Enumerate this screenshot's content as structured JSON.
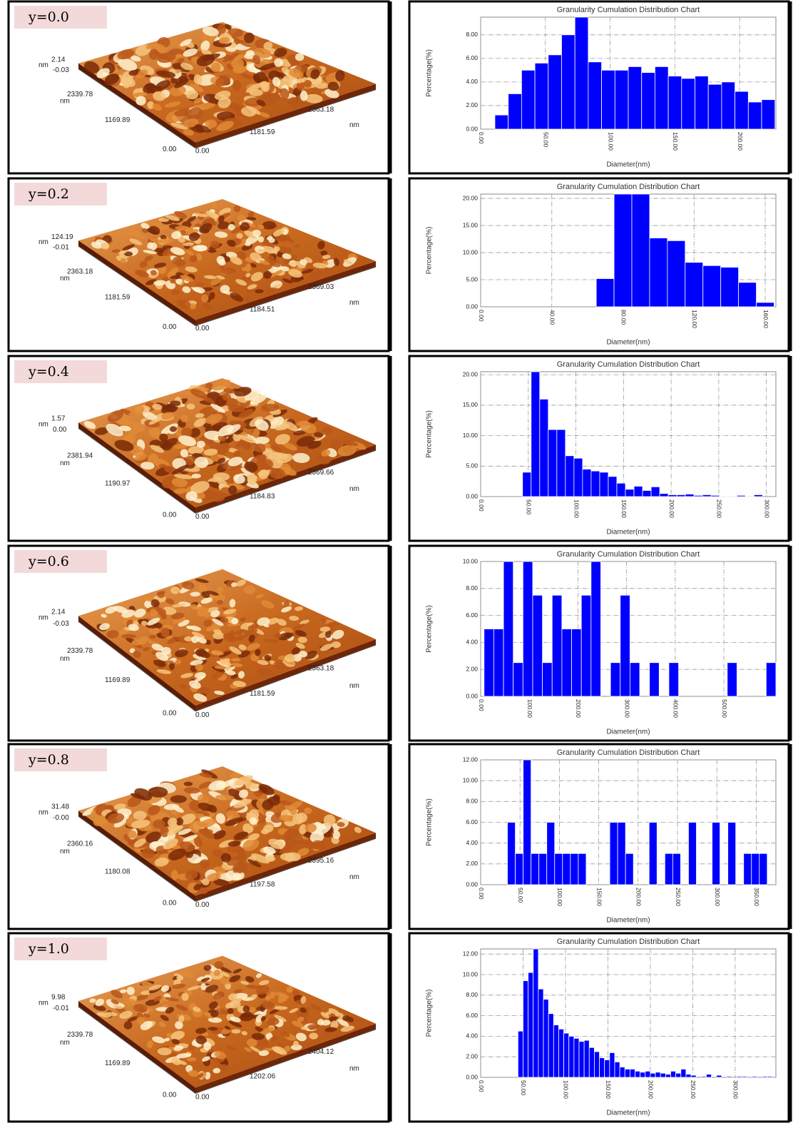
{
  "afm_panels": [
    {
      "label": "y=0.0",
      "unit": "nm",
      "z_max": "2.14",
      "z_min": "-0.03",
      "y_max": "2339.78",
      "y_mid": "1169.89",
      "origin_y": "0.00",
      "origin_x": "0.00",
      "x_mid": "1181.59",
      "x_max": "2363.18"
    },
    {
      "label": "y=0.2",
      "unit": "nm",
      "z_max": "124.19",
      "z_min": "-0.01",
      "y_max": "2363.18",
      "y_mid": "1181.59",
      "origin_y": "0.00",
      "origin_x": "0.00",
      "x_mid": "1184.51",
      "x_max": "2369.03"
    },
    {
      "label": "y=0.4",
      "unit": "nm",
      "z_max": "1.57",
      "z_min": "0.00",
      "y_max": "2381.94",
      "y_mid": "1190.97",
      "origin_y": "0.00",
      "origin_x": "0.00",
      "x_mid": "1184.83",
      "x_max": "2369.66"
    },
    {
      "label": "y=0.6",
      "unit": "nm",
      "z_max": "2.14",
      "z_min": "-0.03",
      "y_max": "2339.78",
      "y_mid": "1169.89",
      "origin_y": "0.00",
      "origin_x": "0.00",
      "x_mid": "1181.59",
      "x_max": "2363.18"
    },
    {
      "label": "y=0.8",
      "unit": "nm",
      "z_max": "31.48",
      "z_min": "-0.00",
      "y_max": "2360.16",
      "y_mid": "1180.08",
      "origin_y": "0.00",
      "origin_x": "0.00",
      "x_mid": "1197.58",
      "x_max": "2395.16"
    },
    {
      "label": "y=1.0",
      "unit": "nm",
      "z_max": "9.98",
      "z_min": "-0.01",
      "y_max": "2339.78",
      "y_mid": "1169.89",
      "origin_y": "0.00",
      "origin_x": "0.00",
      "x_mid": "1202.06",
      "x_max": "2404.12"
    }
  ],
  "chart_data": [
    {
      "type": "histogram",
      "title": "Granularity Cumulation Distribution  Chart",
      "x_label": "Diameter(nm)",
      "y_label": "Percentage(%)",
      "color": "#0000ff",
      "grid": true,
      "bins": [
        11,
        21.3,
        31.6,
        41.9,
        52.2,
        62.5,
        72.8,
        83.1,
        93.4,
        103.7,
        114,
        124.3,
        134.6,
        144.9,
        155.2,
        165.5,
        175.8,
        186.1,
        196.4,
        206.7,
        217,
        227.3
      ],
      "values": [
        1.2,
        3.0,
        5.0,
        5.6,
        6.3,
        8.0,
        9.5,
        5.7,
        5.0,
        5.0,
        5.3,
        4.8,
        5.3,
        4.5,
        4.3,
        4.5,
        3.8,
        4.0,
        3.2,
        2.3,
        2.5
      ],
      "xlim": [
        0,
        228
      ],
      "ylim": [
        0,
        9.5
      ],
      "xticks": [
        {
          "value": 0,
          "label": "0.00"
        },
        {
          "value": 50,
          "label": "50.00"
        },
        {
          "value": 100,
          "label": "100.00"
        },
        {
          "value": 150,
          "label": "150.00"
        },
        {
          "value": 200,
          "label": "200.00"
        }
      ],
      "yticks": [
        {
          "value": 0,
          "label": "0.00"
        },
        {
          "value": 2,
          "label": "2.00"
        },
        {
          "value": 4,
          "label": "4.00"
        },
        {
          "value": 6,
          "label": "6.00"
        },
        {
          "value": 8,
          "label": "8.00"
        }
      ]
    },
    {
      "type": "histogram",
      "title": "Granularity Cumulation Distribution  Chart",
      "x_label": "Diameter(nm)",
      "y_label": "Percentage(%)",
      "color": "#0000ff",
      "grid": true,
      "bins": [
        65,
        75,
        85,
        95,
        105,
        115,
        125,
        135,
        145,
        155,
        165
      ],
      "values": [
        5.2,
        20.8,
        20.8,
        12.7,
        12.2,
        8.2,
        7.6,
        7.3,
        4.5,
        0.8
      ],
      "xlim": [
        0,
        166
      ],
      "ylim": [
        0,
        20.8
      ],
      "xticks": [
        {
          "value": 0,
          "label": "0.00"
        },
        {
          "value": 40,
          "label": "40.00"
        },
        {
          "value": 80,
          "label": "80.00"
        },
        {
          "value": 120,
          "label": "120.00"
        },
        {
          "value": 160,
          "label": "160.00"
        }
      ],
      "yticks": [
        {
          "value": 0,
          "label": "0.00"
        },
        {
          "value": 5,
          "label": "5.00"
        },
        {
          "value": 10,
          "label": "10.00"
        },
        {
          "value": 15,
          "label": "15.00"
        },
        {
          "value": 20,
          "label": "20.00"
        }
      ]
    },
    {
      "type": "histogram",
      "title": "Granularity Cumulation Distribution  Chart",
      "x_label": "Diameter(nm)",
      "y_label": "Percentage(%)",
      "color": "#0000ff",
      "grid": true,
      "bins": [
        44,
        53,
        62,
        71,
        80,
        89,
        98,
        107,
        116,
        125,
        134,
        143,
        152,
        161,
        170,
        179,
        188,
        197,
        206,
        215,
        224,
        233,
        242,
        251,
        260,
        269,
        278,
        287,
        296
      ],
      "values": [
        4.0,
        20.5,
        16.0,
        11.0,
        11.0,
        6.7,
        6.3,
        4.5,
        4.2,
        4.0,
        3.3,
        2.2,
        1.2,
        1.7,
        1.0,
        1.6,
        0.5,
        0.3,
        0.3,
        0.4,
        0.2,
        0.3,
        0.2,
        0.1,
        0.1,
        0.2,
        0.1,
        0.3
      ],
      "xlim": [
        0,
        310
      ],
      "ylim": [
        0,
        20.5
      ],
      "xticks": [
        {
          "value": 0,
          "label": "0.00"
        },
        {
          "value": 50,
          "label": "50.00"
        },
        {
          "value": 100,
          "label": "100.00"
        },
        {
          "value": 150,
          "label": "150.00"
        },
        {
          "value": 200,
          "label": "200.00"
        },
        {
          "value": 250,
          "label": "250.00"
        },
        {
          "value": 300,
          "label": "300.00"
        }
      ],
      "yticks": [
        {
          "value": 0,
          "label": "0.00"
        },
        {
          "value": 5,
          "label": "5.00"
        },
        {
          "value": 10,
          "label": "10.00"
        },
        {
          "value": 15,
          "label": "15.00"
        },
        {
          "value": 20,
          "label": "20.00"
        }
      ]
    },
    {
      "type": "histogram",
      "title": "Granularity Cumulation Distribution  Chart",
      "x_label": "Diameter(nm)",
      "y_label": "Percentage(%)",
      "color": "#0000ff",
      "grid": true,
      "bins": [
        7,
        27,
        47,
        67,
        87,
        107,
        127,
        147,
        167,
        187,
        207,
        227,
        247,
        267,
        287,
        307,
        327,
        347,
        367,
        387,
        407,
        427,
        447,
        467,
        487,
        507,
        527,
        547,
        567,
        587,
        607
      ],
      "values": [
        5,
        5,
        10,
        2.5,
        10,
        7.5,
        2.5,
        7.5,
        5,
        5,
        7.5,
        10,
        0,
        2.5,
        7.5,
        2.5,
        0,
        2.5,
        0,
        2.5,
        0,
        0,
        0,
        0,
        0,
        2.5,
        0,
        0,
        0,
        2.5
      ],
      "xlim": [
        0,
        607
      ],
      "ylim": [
        0,
        10
      ],
      "xticks": [
        {
          "value": 0,
          "label": "0.00"
        },
        {
          "value": 100,
          "label": "100.00"
        },
        {
          "value": 200,
          "label": "200.00"
        },
        {
          "value": 300,
          "label": "300.00"
        },
        {
          "value": 400,
          "label": "400.00"
        },
        {
          "value": 500,
          "label": "500.00"
        }
      ],
      "yticks": [
        {
          "value": 0,
          "label": "0.00"
        },
        {
          "value": 2,
          "label": "2.00"
        },
        {
          "value": 4,
          "label": "4.00"
        },
        {
          "value": 6,
          "label": "6.00"
        },
        {
          "value": 8,
          "label": "8.00"
        },
        {
          "value": 10,
          "label": "10.00"
        }
      ]
    },
    {
      "type": "histogram",
      "title": "Granularity Cumulation Distribution  Chart",
      "x_label": "Diameter(nm)",
      "y_label": "Percentage(%)",
      "color": "#0000ff",
      "grid": true,
      "bins": [
        34,
        44,
        54,
        64,
        74,
        84,
        94,
        104,
        114,
        124,
        134,
        144,
        154,
        164,
        174,
        184,
        194,
        204,
        214,
        224,
        234,
        244,
        254,
        264,
        274,
        284,
        294,
        304,
        314,
        324,
        334,
        344,
        354,
        364
      ],
      "values": [
        6,
        3,
        12,
        3,
        3,
        6,
        3,
        3,
        3,
        3,
        0,
        0,
        0,
        6,
        6,
        3,
        0,
        0,
        6,
        0,
        3,
        3,
        0,
        6,
        0,
        0,
        6,
        0,
        6,
        0,
        3,
        3,
        3
      ],
      "xlim": [
        0,
        375
      ],
      "ylim": [
        0,
        12
      ],
      "xticks": [
        {
          "value": 0,
          "label": "0.00"
        },
        {
          "value": 50,
          "label": "50.00"
        },
        {
          "value": 100,
          "label": "100.00"
        },
        {
          "value": 150,
          "label": "150.00"
        },
        {
          "value": 200,
          "label": "200.00"
        },
        {
          "value": 250,
          "label": "250.00"
        },
        {
          "value": 300,
          "label": "300.00"
        },
        {
          "value": 350,
          "label": "350.00"
        }
      ],
      "yticks": [
        {
          "value": 0,
          "label": "0.00"
        },
        {
          "value": 2,
          "label": "2.00"
        },
        {
          "value": 4,
          "label": "4.00"
        },
        {
          "value": 6,
          "label": "6.00"
        },
        {
          "value": 8,
          "label": "8.00"
        },
        {
          "value": 10,
          "label": "10.00"
        },
        {
          "value": 12,
          "label": "12.00"
        }
      ]
    },
    {
      "type": "histogram",
      "title": "Granularity Cumulation Distribution  Chart",
      "x_label": "Diameter(nm)",
      "y_label": "Percentage(%)",
      "color": "#0000ff",
      "grid": true,
      "bins": [
        44,
        50,
        56,
        62,
        68,
        74,
        80,
        86,
        92,
        98,
        104,
        110,
        116,
        122,
        128,
        134,
        140,
        146,
        152,
        158,
        164,
        170,
        176,
        182,
        188,
        194,
        200,
        206,
        212,
        218,
        224,
        230,
        236,
        242,
        248,
        254,
        260,
        266,
        272,
        278,
        284,
        290,
        296,
        302,
        308,
        314,
        320,
        326,
        332,
        338,
        344
      ],
      "values": [
        4.5,
        9.4,
        10.2,
        12.5,
        8.6,
        7.6,
        6.2,
        5.1,
        4.7,
        4.3,
        4.0,
        3.8,
        3.5,
        3.6,
        2.9,
        2.5,
        1.9,
        1.7,
        2.4,
        1.5,
        1.0,
        0.8,
        0.8,
        0.6,
        0.5,
        0.6,
        0.4,
        0.5,
        0.4,
        0.3,
        0.6,
        0.4,
        0.8,
        0.3,
        0.2,
        0,
        0.1,
        0.3,
        0,
        0.2,
        0,
        0.1,
        0,
        0.1,
        0.1,
        0,
        0.1,
        0,
        0.1,
        0.1
      ],
      "xlim": [
        0,
        348
      ],
      "ylim": [
        0,
        12.5
      ],
      "xticks": [
        {
          "value": 0,
          "label": "0.00"
        },
        {
          "value": 50,
          "label": "50.00"
        },
        {
          "value": 100,
          "label": "100.00"
        },
        {
          "value": 150,
          "label": "150.00"
        },
        {
          "value": 200,
          "label": "200.00"
        },
        {
          "value": 250,
          "label": "250.00"
        },
        {
          "value": 300,
          "label": "300.00"
        }
      ],
      "yticks": [
        {
          "value": 0,
          "label": "0.00"
        },
        {
          "value": 2,
          "label": "2.00"
        },
        {
          "value": 4,
          "label": "4.00"
        },
        {
          "value": 6,
          "label": "6.00"
        },
        {
          "value": 8,
          "label": "8.00"
        },
        {
          "value": 10,
          "label": "10.00"
        },
        {
          "value": 12,
          "label": "12.00"
        }
      ]
    }
  ]
}
